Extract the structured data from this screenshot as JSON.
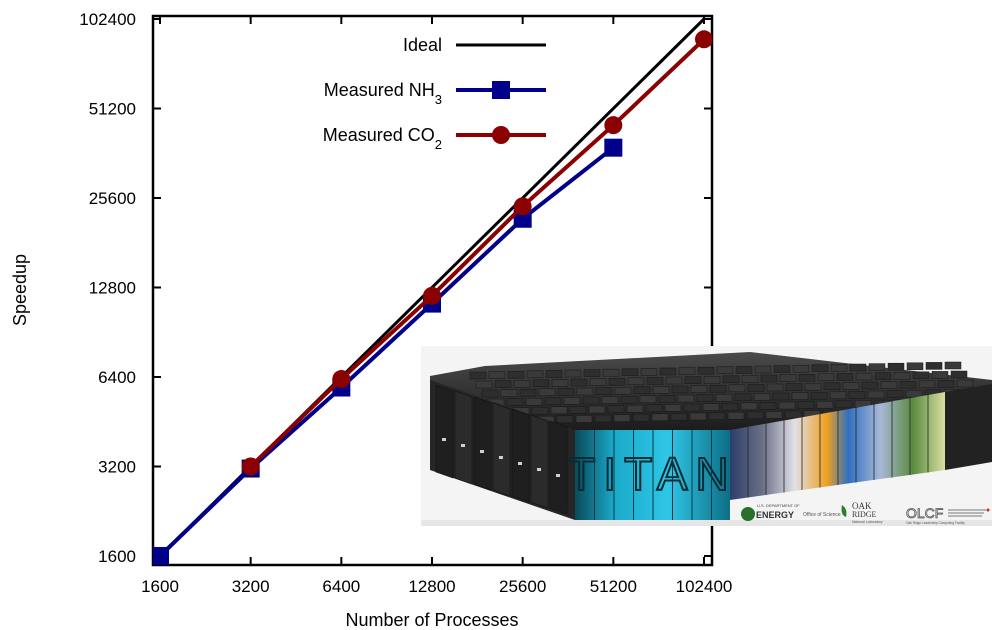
{
  "chart_data": {
    "type": "line",
    "title": "",
    "xlabel": "Number of Processes",
    "ylabel": "Speedup",
    "x_scale": "log2",
    "y_scale": "log2",
    "xlim": [
      1600,
      102400
    ],
    "ylim": [
      1600,
      102400
    ],
    "x_ticks": [
      "1600",
      "3200",
      "6400",
      "12800",
      "25600",
      "51200",
      "102400"
    ],
    "y_ticks": [
      "1600",
      "3200",
      "6400",
      "12800",
      "25600",
      "51200",
      "102400"
    ],
    "legend_position": "top-right",
    "grid": false,
    "series": [
      {
        "name": "Ideal",
        "color": "#000000",
        "marker": "none",
        "x": [
          1600,
          102400
        ],
        "y": [
          1600,
          102400
        ]
      },
      {
        "name": "Measured NH",
        "subscript": "3",
        "color": "#00008b",
        "marker": "square",
        "x": [
          1600,
          3200,
          6400,
          12800,
          25600,
          51200
        ],
        "y": [
          1600,
          3150,
          5900,
          11300,
          21800,
          37800
        ]
      },
      {
        "name": "Measured CO",
        "subscript": "2",
        "color": "#8b0000",
        "marker": "circle",
        "x": [
          3200,
          6400,
          12800,
          25600,
          51200,
          102400
        ],
        "y": [
          3200,
          6300,
          12000,
          24000,
          45000,
          87500
        ]
      }
    ]
  },
  "inset_image": {
    "description_label": "TITAN",
    "logos": {
      "doe_small": "U.S. DEPARTMENT OF",
      "doe": "ENERGY",
      "doe_office": "Office of Science",
      "ornl_top": "OAK",
      "ornl_bottom": "RIDGE",
      "ornl_sub": "National Laboratory",
      "olcf": "OLCF",
      "olcf_sub": "Oak Ridge Leadership Computing Facility"
    }
  }
}
